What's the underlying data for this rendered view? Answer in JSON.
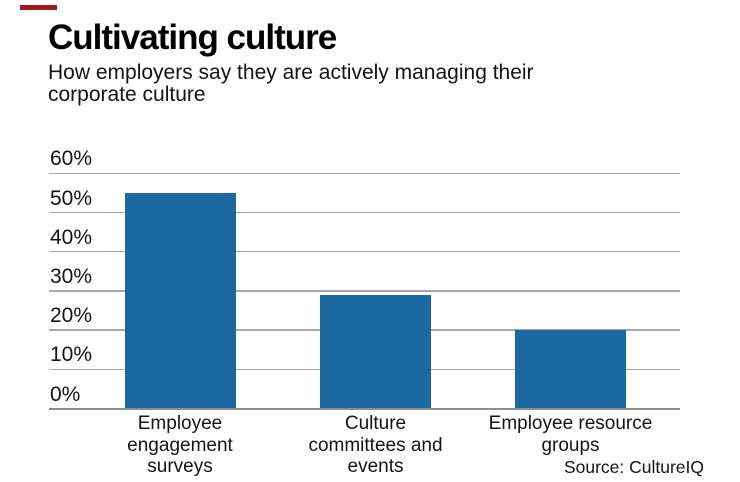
{
  "header": {
    "title": "Cultivating culture",
    "subtitle": "How employers say they are actively managing their\ncorporate culture"
  },
  "chart_data": {
    "type": "bar",
    "title": "Cultivating culture",
    "subtitle": "How employers say they are actively managing their corporate culture",
    "categories": [
      "Employee\nengagement\nsurveys",
      "Culture\ncommittees and\nevents",
      "Employee resource\ngroups"
    ],
    "values": [
      55,
      29,
      20
    ],
    "unit": "%",
    "xlabel": "",
    "ylabel": "",
    "ylim": [
      0,
      60
    ],
    "yticks": [
      0,
      10,
      20,
      30,
      40,
      50,
      60
    ],
    "ytick_labels": [
      "0%",
      "10%",
      "20%",
      "30%",
      "40%",
      "50%",
      "60%"
    ],
    "grid": true,
    "legend": false
  },
  "source": {
    "text": "Source: CultureIQ"
  },
  "colors": {
    "bar": "#1c68a1",
    "accent_dash": "#9f1d20",
    "grid": "#a8a8a8",
    "axis": "#8d8d8d",
    "text": "#141414"
  }
}
